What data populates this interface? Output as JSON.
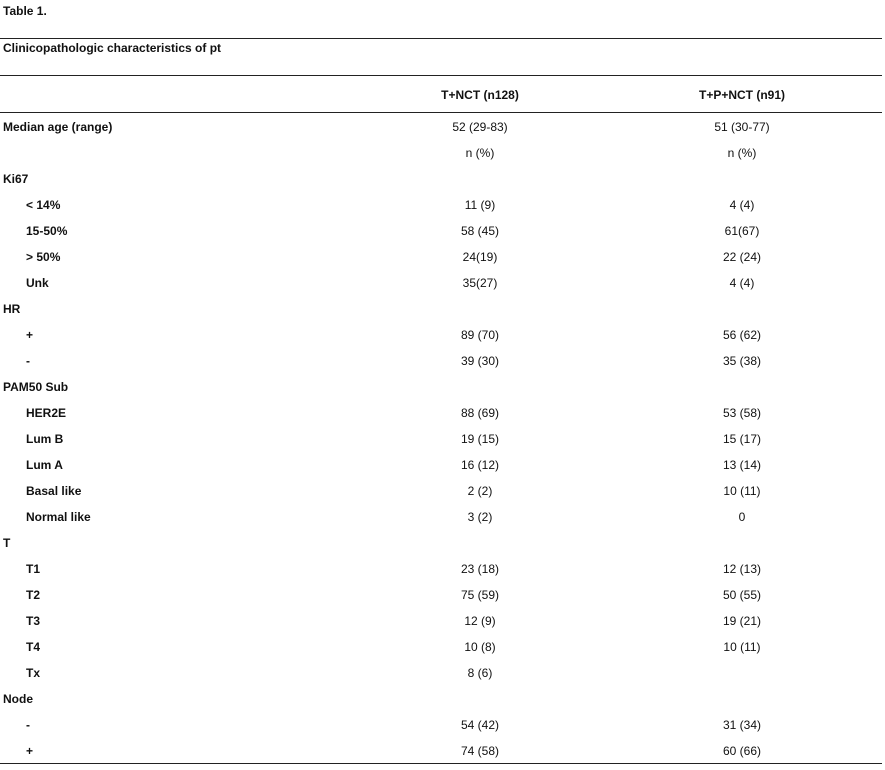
{
  "caption": "Table 1.",
  "title": "Clinicopathologic characteristics of pt",
  "columns": [
    "T+NCT (n128)",
    "T+P+NCT (n91)"
  ],
  "rows": [
    {
      "label": "Median age (range)",
      "indent": false,
      "v1": "52 (29-83)",
      "v2": "51 (30-77)"
    },
    {
      "label": "",
      "indent": false,
      "v1": "n (%)",
      "v2": "n (%)"
    },
    {
      "label": "Ki67",
      "indent": false,
      "v1": "",
      "v2": ""
    },
    {
      "label": "< 14%",
      "indent": true,
      "v1": "11 (9)",
      "v2": "4 (4)"
    },
    {
      "label": "15-50%",
      "indent": true,
      "v1": "58 (45)",
      "v2": "61(67)"
    },
    {
      "label": "> 50%",
      "indent": true,
      "v1": "24(19)",
      "v2": "22 (24)"
    },
    {
      "label": "Unk",
      "indent": true,
      "v1": "35(27)",
      "v2": "4 (4)"
    },
    {
      "label": "HR",
      "indent": false,
      "v1": "",
      "v2": ""
    },
    {
      "label": "+",
      "indent": true,
      "v1": "89 (70)",
      "v2": "56 (62)"
    },
    {
      "label": "-",
      "indent": true,
      "v1": "39 (30)",
      "v2": "35 (38)"
    },
    {
      "label": "PAM50 Sub",
      "indent": false,
      "v1": "",
      "v2": ""
    },
    {
      "label": "HER2E",
      "indent": true,
      "v1": "88 (69)",
      "v2": "53 (58)"
    },
    {
      "label": "Lum B",
      "indent": true,
      "v1": "19 (15)",
      "v2": "15 (17)"
    },
    {
      "label": "Lum A",
      "indent": true,
      "v1": "16 (12)",
      "v2": "13 (14)"
    },
    {
      "label": "Basal like",
      "indent": true,
      "v1": "2 (2)",
      "v2": "10 (11)"
    },
    {
      "label": "Normal like",
      "indent": true,
      "v1": "3 (2)",
      "v2": "0"
    },
    {
      "label": "T",
      "indent": false,
      "v1": "",
      "v2": ""
    },
    {
      "label": "T1",
      "indent": true,
      "v1": "23 (18)",
      "v2": "12 (13)"
    },
    {
      "label": "T2",
      "indent": true,
      "v1": "75 (59)",
      "v2": "50 (55)"
    },
    {
      "label": "T3",
      "indent": true,
      "v1": "12 (9)",
      "v2": "19 (21)"
    },
    {
      "label": "T4",
      "indent": true,
      "v1": "10 (8)",
      "v2": "10 (11)"
    },
    {
      "label": "Tx",
      "indent": true,
      "v1": "8 (6)",
      "v2": ""
    },
    {
      "label": "Node",
      "indent": false,
      "v1": "",
      "v2": ""
    },
    {
      "label": "-",
      "indent": true,
      "v1": "54 (42)",
      "v2": "31 (34)"
    },
    {
      "label": "+",
      "indent": true,
      "v1": "74 (58)",
      "v2": "60 (66)"
    }
  ]
}
